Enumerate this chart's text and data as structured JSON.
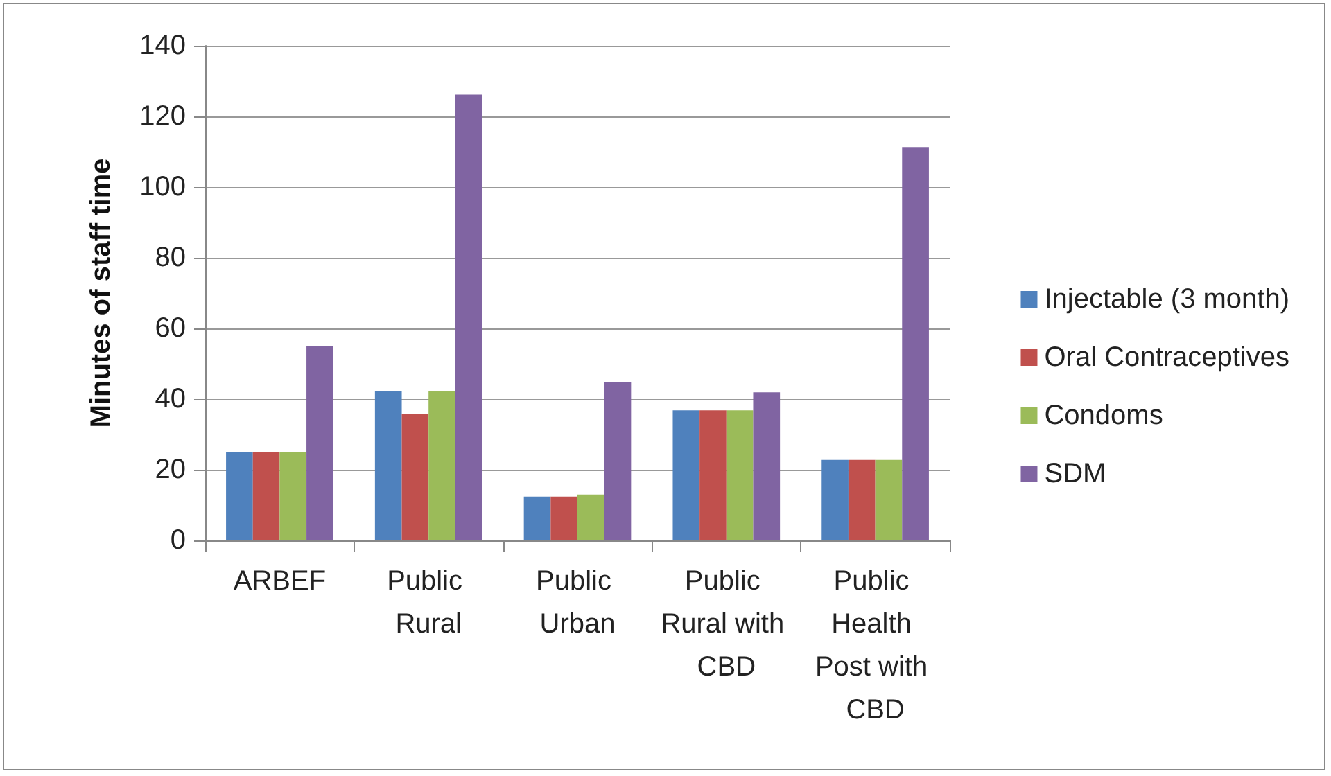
{
  "chart_data": {
    "type": "bar",
    "ylabel": "Minutes of staff time",
    "categories": [
      "ARBEF",
      "Public Rural",
      "Public Urban",
      "Public Rural with CBD",
      "Public Health Post with CBD"
    ],
    "series": [
      {
        "name": "Injectable (3 month)",
        "color": "#4f81bd",
        "values": [
          25,
          42.3,
          12.4,
          36.8,
          22.8
        ]
      },
      {
        "name": "Oral Contraceptives",
        "color": "#c0504d",
        "values": [
          25,
          35.7,
          12.4,
          36.8,
          22.8
        ]
      },
      {
        "name": "Condoms",
        "color": "#9bbb59",
        "values": [
          25,
          42.3,
          13,
          36.8,
          22.8
        ]
      },
      {
        "name": "SDM",
        "color": "#8064a2",
        "values": [
          55,
          126.2,
          44.8,
          41.9,
          111.3
        ]
      }
    ],
    "ylim": [
      0,
      140
    ],
    "yticks": [
      0,
      20,
      40,
      60,
      80,
      100,
      120,
      140
    ],
    "grid": "y",
    "legend": "right"
  }
}
